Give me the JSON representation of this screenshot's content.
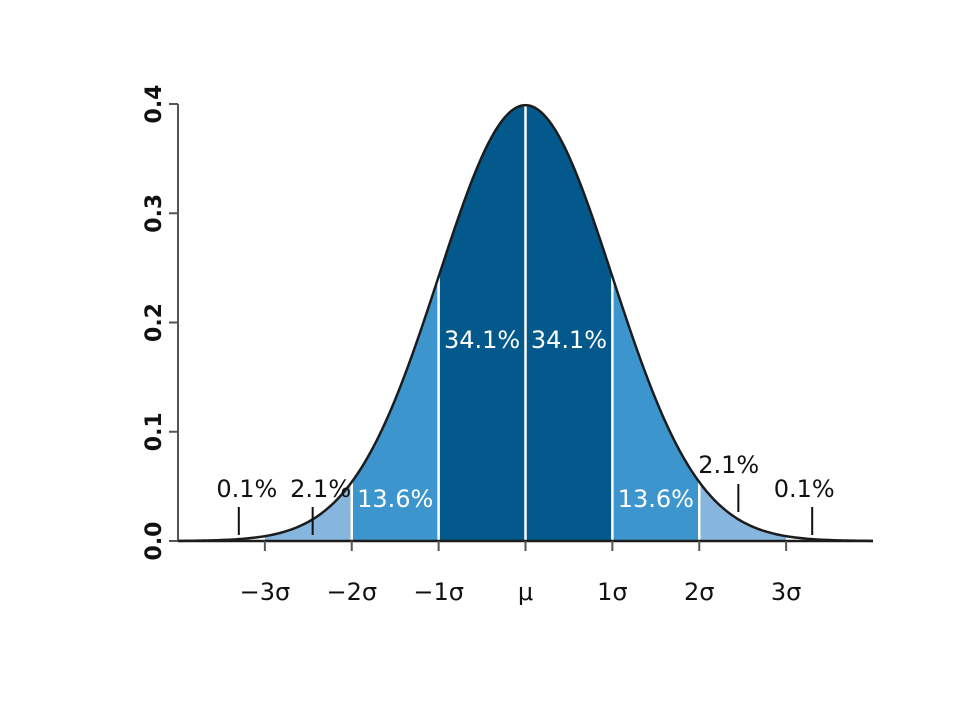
{
  "chart_data": {
    "type": "area",
    "title": "",
    "xlabel": "",
    "ylabel": "",
    "xlim": [
      -4,
      4
    ],
    "ylim": [
      0,
      0.4
    ],
    "curve": "standard normal density",
    "mean": 0,
    "sd": 1,
    "yticks": [
      {
        "value": 0.0,
        "label": "0.0"
      },
      {
        "value": 0.1,
        "label": "0.1"
      },
      {
        "value": 0.2,
        "label": "0.2"
      },
      {
        "value": 0.3,
        "label": "0.3"
      },
      {
        "value": 0.4,
        "label": "0.4"
      }
    ],
    "xticks": [
      {
        "value": -3,
        "label": "−3σ"
      },
      {
        "value": -2,
        "label": "−2σ"
      },
      {
        "value": -1,
        "label": "−1σ"
      },
      {
        "value": 0,
        "label": "μ"
      },
      {
        "value": 1,
        "label": "1σ"
      },
      {
        "value": 2,
        "label": "2σ"
      },
      {
        "value": 3,
        "label": "3σ"
      }
    ],
    "regions": [
      {
        "from": -4,
        "to": -3,
        "label": "0.1%",
        "color": "#ffffff",
        "label_inside": false,
        "pointer_at": -3.3
      },
      {
        "from": -3,
        "to": -2,
        "label": "2.1%",
        "color": "#86b6de",
        "label_inside": false,
        "pointer_at": -2.45
      },
      {
        "from": -2,
        "to": -1,
        "label": "13.6%",
        "color": "#3d95cd",
        "label_inside": true
      },
      {
        "from": -1,
        "to": 0,
        "label": "34.1%",
        "color": "#03588c",
        "label_inside": true
      },
      {
        "from": 0,
        "to": 1,
        "label": "34.1%",
        "color": "#03588c",
        "label_inside": true
      },
      {
        "from": 1,
        "to": 2,
        "label": "13.6%",
        "color": "#3d95cd",
        "label_inside": true
      },
      {
        "from": 2,
        "to": 3,
        "label": "2.1%",
        "color": "#86b6de",
        "label_inside": false,
        "pointer_at": 2.45
      },
      {
        "from": 3,
        "to": 4,
        "label": "0.1%",
        "color": "#ffffff",
        "label_inside": false,
        "pointer_at": 3.3
      }
    ],
    "colors": {
      "curve": "#1c1c1c",
      "axis": "#555555",
      "divider": "#ffffff"
    }
  }
}
